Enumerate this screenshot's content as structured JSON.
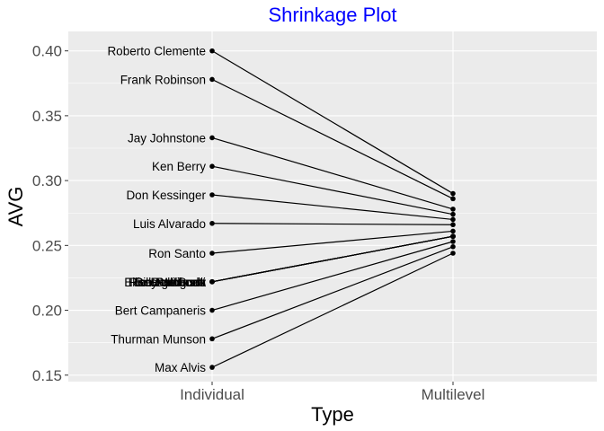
{
  "chart_data": {
    "type": "line",
    "title": "Shrinkage Plot",
    "xlabel": "Type",
    "ylabel": "AVG",
    "categories": [
      "Individual",
      "Multilevel"
    ],
    "ylim": [
      0.145,
      0.415
    ],
    "yticks": [
      0.15,
      0.2,
      0.25,
      0.3,
      0.35,
      0.4
    ],
    "ytick_labels": [
      "0.15",
      "0.20",
      "0.25",
      "0.30",
      "0.35",
      "0.40"
    ],
    "grid": true,
    "legend": "none",
    "series": [
      {
        "name": "Roberto Clemente",
        "values": [
          0.4,
          0.29
        ]
      },
      {
        "name": "Frank Robinson",
        "values": [
          0.378,
          0.286
        ]
      },
      {
        "name": "Jay Johnstone",
        "values": [
          0.333,
          0.278
        ]
      },
      {
        "name": "Ken Berry",
        "values": [
          0.311,
          0.274
        ]
      },
      {
        "name": "Don Kessinger",
        "values": [
          0.289,
          0.27
        ]
      },
      {
        "name": "Luis Alvarado",
        "values": [
          0.267,
          0.266
        ]
      },
      {
        "name": "Ron Santo",
        "values": [
          0.244,
          0.261
        ]
      },
      {
        "name": "Ron Swoboda",
        "values": [
          0.222,
          0.257
        ]
      },
      {
        "name": "Del Unser",
        "values": [
          0.222,
          0.257
        ]
      },
      {
        "name": "Billy Williams",
        "values": [
          0.222,
          0.257
        ]
      },
      {
        "name": "George Scott",
        "values": [
          0.222,
          0.257
        ]
      },
      {
        "name": "Rico Petrocelli",
        "values": [
          0.222,
          0.257
        ]
      },
      {
        "name": "Ellie Rodriguez",
        "values": [
          0.222,
          0.257
        ]
      },
      {
        "name": "Bert Campaneris",
        "values": [
          0.2,
          0.253
        ]
      },
      {
        "name": "Thurman Munson",
        "values": [
          0.178,
          0.249
        ]
      },
      {
        "name": "Max Alvis",
        "values": [
          0.156,
          0.244
        ]
      }
    ]
  },
  "colors": {
    "title": "#0000ff",
    "panel": "#ebebeb",
    "grid": "#ffffff",
    "line": "#000000"
  }
}
